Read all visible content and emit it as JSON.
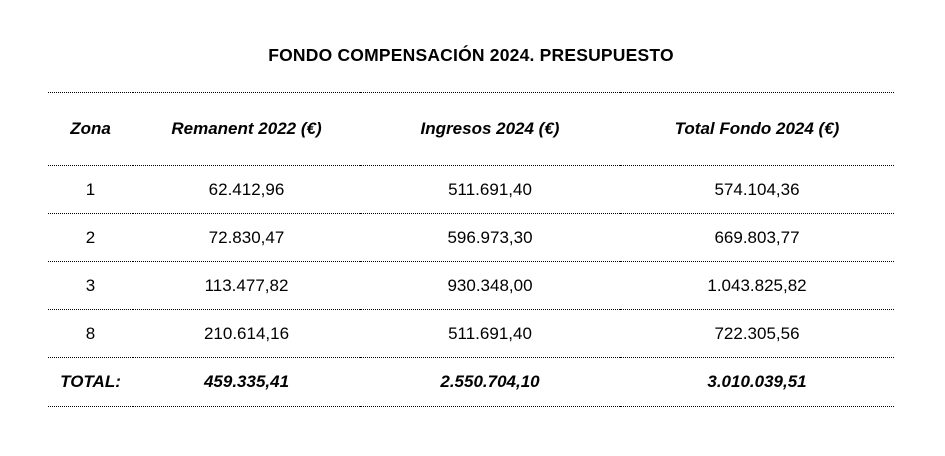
{
  "page": {
    "background_color": "#ffffff",
    "text_color": "#000000",
    "rule_color": "#000000",
    "rule_style": "dotted"
  },
  "title": "FONDO COMPENSACIÓN 2024. PRESUPUESTO",
  "table": {
    "headers": [
      "Zona",
      "Remanent 2022 (€)",
      "Ingresos 2024 (€)",
      "Total Fondo 2024 (€)"
    ],
    "rows": [
      {
        "cells": [
          "1",
          "62.412,96",
          "511.691,40",
          "574.104,36"
        ]
      },
      {
        "cells": [
          "2",
          "72.830,47",
          "596.973,30",
          "669.803,77"
        ]
      },
      {
        "cells": [
          "3",
          "113.477,82",
          "930.348,00",
          "1.043.825,82"
        ]
      },
      {
        "cells": [
          "8",
          "210.614,16",
          "511.691,40",
          "722.305,56"
        ]
      }
    ],
    "total_row": {
      "cells": [
        "TOTAL:",
        "459.335,41",
        "2.550.704,10",
        "3.010.039,51"
      ]
    }
  }
}
